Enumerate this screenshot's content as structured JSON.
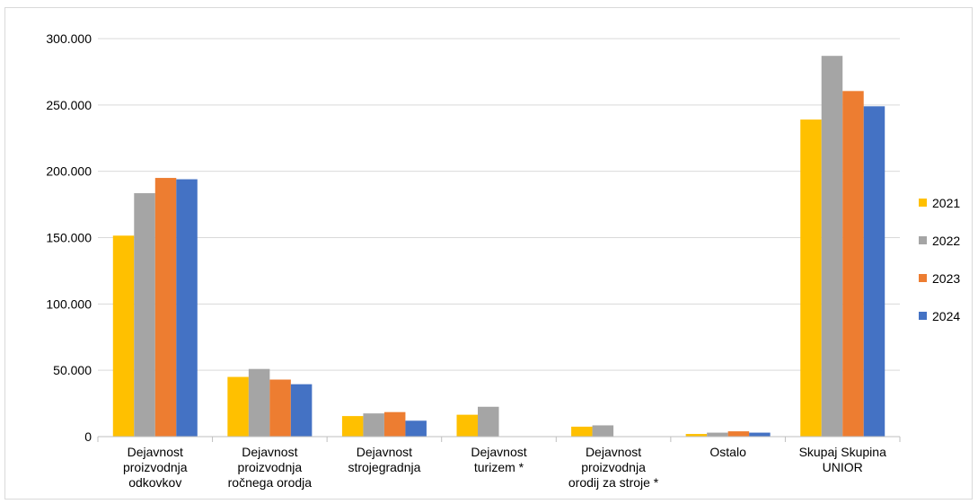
{
  "chart_data": {
    "type": "bar",
    "categories": [
      [
        "Dejavnost",
        "proizvodnja",
        "odkovkov"
      ],
      [
        "Dejavnost",
        "proizvodnja",
        "ročnega orodja"
      ],
      [
        "Dejavnost",
        "strojegradnja"
      ],
      [
        "Dejavnost",
        "turizem *"
      ],
      [
        "Dejavnost",
        "proizvodnja",
        "orodij za stroje *"
      ],
      [
        "Ostalo"
      ],
      [
        "Skupaj Skupina",
        "UNIOR"
      ]
    ],
    "series": [
      {
        "name": "2021",
        "color": "#FFC000",
        "values": [
          151500,
          45000,
          15500,
          16500,
          7500,
          2000,
          239000
        ]
      },
      {
        "name": "2022",
        "color": "#A5A5A5",
        "values": [
          183500,
          51000,
          17500,
          22500,
          8500,
          3000,
          287000
        ]
      },
      {
        "name": "2023",
        "color": "#ED7D31",
        "values": [
          195000,
          43000,
          18500,
          0,
          0,
          4000,
          260500
        ]
      },
      {
        "name": "2024",
        "color": "#4472C4",
        "values": [
          194000,
          39500,
          12000,
          0,
          0,
          3000,
          249000
        ]
      }
    ],
    "yticks": [
      "0",
      "50.000",
      "100.000",
      "150.000",
      "200.000",
      "250.000",
      "300.000"
    ],
    "ylim": [
      0,
      300000
    ],
    "grid": true,
    "legend_position": "right",
    "title": "",
    "xlabel": "",
    "ylabel": ""
  }
}
